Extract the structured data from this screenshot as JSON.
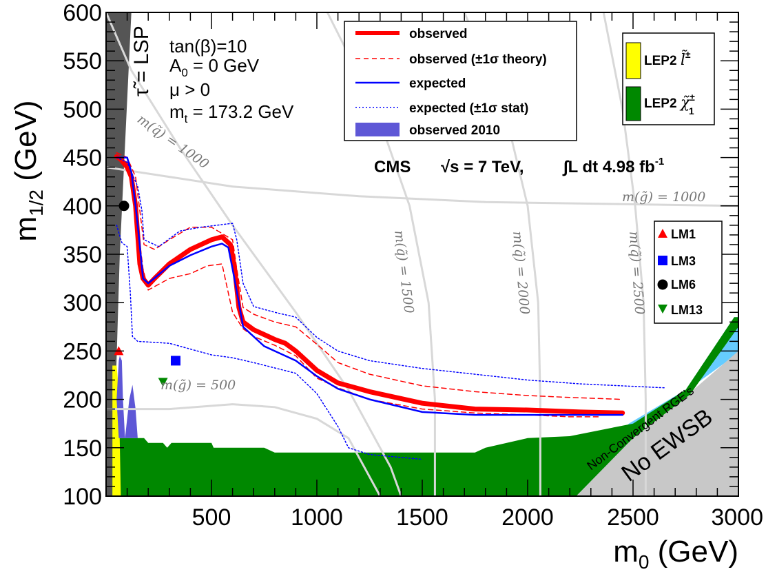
{
  "chart_data": {
    "type": "line",
    "title": "",
    "xlabel": "m0 (GeV)",
    "ylabel": "m1/2 (GeV)",
    "xlim": [
      0,
      3000
    ],
    "ylim": [
      100,
      600
    ],
    "x_ticks": [
      500,
      1000,
      1500,
      2000,
      2500,
      3000
    ],
    "y_ticks": [
      100,
      150,
      200,
      250,
      300,
      350,
      400,
      450,
      500,
      550,
      600
    ],
    "parameters": [
      "tan(β)=10",
      "A0 = 0 GeV",
      "μ > 0",
      "mt = 173.2 GeV"
    ],
    "cms_label": "CMS",
    "energy_label": "√s = 7 TeV,",
    "lumi_label": "∫L dt 4.98 fb-1",
    "series": [
      {
        "name": "observed",
        "color": "#ff0000",
        "style": "solid-thick",
        "points": [
          [
            50,
            451
          ],
          [
            70,
            448
          ],
          [
            100,
            440
          ],
          [
            120,
            430
          ],
          [
            140,
            400
          ],
          [
            150,
            370
          ],
          [
            160,
            340
          ],
          [
            175,
            325
          ],
          [
            200,
            318
          ],
          [
            230,
            325
          ],
          [
            300,
            340
          ],
          [
            400,
            355
          ],
          [
            500,
            365
          ],
          [
            550,
            368
          ],
          [
            590,
            360
          ],
          [
            610,
            335
          ],
          [
            630,
            295
          ],
          [
            650,
            280
          ],
          [
            700,
            272
          ],
          [
            800,
            262
          ],
          [
            850,
            258
          ],
          [
            900,
            250
          ],
          [
            1000,
            230
          ],
          [
            1100,
            217
          ],
          [
            1250,
            208
          ],
          [
            1500,
            196
          ],
          [
            1750,
            190
          ],
          [
            2000,
            189
          ],
          [
            2250,
            187
          ],
          [
            2450,
            186
          ]
        ]
      },
      {
        "name": "observed (±1σ theory)",
        "color": "#ff0000",
        "style": "dashed",
        "points_upper": [
          [
            50,
            455
          ],
          [
            100,
            450
          ],
          [
            140,
            430
          ],
          [
            160,
            395
          ],
          [
            180,
            360
          ],
          [
            230,
            355
          ],
          [
            300,
            365
          ],
          [
            400,
            378
          ],
          [
            500,
            378
          ],
          [
            600,
            365
          ],
          [
            620,
            335
          ],
          [
            650,
            295
          ],
          [
            700,
            288
          ],
          [
            800,
            280
          ],
          [
            900,
            275
          ],
          [
            1000,
            257
          ],
          [
            1100,
            238
          ],
          [
            1250,
            226
          ],
          [
            1500,
            214
          ],
          [
            1750,
            208
          ],
          [
            2000,
            204
          ],
          [
            2200,
            202
          ],
          [
            2450,
            200
          ]
        ],
        "points_lower": [
          [
            50,
            450
          ],
          [
            100,
            445
          ],
          [
            130,
            420
          ],
          [
            150,
            380
          ],
          [
            175,
            335
          ],
          [
            200,
            313
          ],
          [
            300,
            325
          ],
          [
            400,
            330
          ],
          [
            480,
            338
          ],
          [
            550,
            340
          ],
          [
            570,
            320
          ],
          [
            600,
            290
          ],
          [
            650,
            273
          ],
          [
            700,
            265
          ],
          [
            800,
            256
          ],
          [
            900,
            245
          ],
          [
            1000,
            222
          ],
          [
            1100,
            212
          ],
          [
            1250,
            200
          ],
          [
            1500,
            190
          ],
          [
            1750,
            186
          ],
          [
            2000,
            184
          ],
          [
            2200,
            182
          ],
          [
            2350,
            182
          ]
        ]
      },
      {
        "name": "expected",
        "color": "#0000ff",
        "style": "solid",
        "points": [
          [
            50,
            450
          ],
          [
            100,
            450
          ],
          [
            120,
            435
          ],
          [
            140,
            400
          ],
          [
            155,
            370
          ],
          [
            175,
            325
          ],
          [
            200,
            320
          ],
          [
            300,
            338
          ],
          [
            400,
            349
          ],
          [
            500,
            358
          ],
          [
            550,
            361
          ],
          [
            580,
            357
          ],
          [
            600,
            335
          ],
          [
            630,
            300
          ],
          [
            650,
            275
          ],
          [
            750,
            255
          ],
          [
            850,
            245
          ],
          [
            900,
            240
          ],
          [
            1000,
            224
          ],
          [
            1100,
            211
          ],
          [
            1250,
            200
          ],
          [
            1500,
            187
          ],
          [
            1750,
            184
          ],
          [
            2000,
            184
          ],
          [
            2250,
            184
          ],
          [
            2450,
            184
          ]
        ]
      },
      {
        "name": "expected (±1σ stat)",
        "color": "#0000ff",
        "style": "dotted",
        "points_upper": [
          [
            50,
            450
          ],
          [
            100,
            445
          ],
          [
            150,
            420
          ],
          [
            170,
            395
          ],
          [
            180,
            365
          ],
          [
            250,
            358
          ],
          [
            350,
            374
          ],
          [
            450,
            378
          ],
          [
            600,
            382
          ],
          [
            620,
            365
          ],
          [
            650,
            320
          ],
          [
            700,
            296
          ],
          [
            800,
            290
          ],
          [
            900,
            285
          ],
          [
            1000,
            264
          ],
          [
            1100,
            250
          ],
          [
            1250,
            240
          ],
          [
            1500,
            232
          ],
          [
            1750,
            226
          ],
          [
            2000,
            220
          ],
          [
            2250,
            216
          ],
          [
            2650,
            212
          ]
        ],
        "points_lower": [
          [
            50,
            380
          ],
          [
            75,
            362
          ],
          [
            100,
            358
          ],
          [
            115,
            310
          ],
          [
            125,
            265
          ],
          [
            150,
            260
          ],
          [
            300,
            258
          ],
          [
            400,
            252
          ],
          [
            500,
            246
          ],
          [
            600,
            243
          ],
          [
            700,
            238
          ],
          [
            900,
            227
          ],
          [
            1000,
            206
          ],
          [
            1100,
            172
          ],
          [
            1150,
            150
          ],
          [
            1250,
            143
          ],
          [
            1500,
            138
          ]
        ]
      },
      {
        "name": "observed 2010",
        "color": "#5e57d6",
        "style": "fill"
      }
    ],
    "excluded_regions": [
      {
        "name": "LEP2 l̃±",
        "color": "#ffff00"
      },
      {
        "name": "LEP2 χ̃1±",
        "color": "#008800"
      },
      {
        "name": "τ̃ = LSP",
        "color": "#555555"
      },
      {
        "name": "Non-Convergent RGE's",
        "color": "#66ccff"
      },
      {
        "name": "No EWSB",
        "color": "#c8c8c8"
      }
    ],
    "contour_labels": {
      "squark_1000": "m(q̃) = 1000",
      "gluino_1000": "m(g̃) = 1000",
      "squark_1500": "m(q̃) = 1500",
      "squark_2000": "m(q̃) = 2000",
      "squark_2500": "m(q̃) = 2500",
      "gluino_500": "m(g̃) = 500"
    },
    "benchmarks": [
      {
        "name": "LM1",
        "m0": 60,
        "m12": 250,
        "color": "#ff0000",
        "marker": "triangle-up"
      },
      {
        "name": "LM3",
        "m0": 330,
        "m12": 240,
        "color": "#0000ff",
        "marker": "square"
      },
      {
        "name": "LM6",
        "m0": 85,
        "m12": 400,
        "color": "#000000",
        "marker": "circle"
      },
      {
        "name": "LM13",
        "m0": 270,
        "m12": 218,
        "color": "#008800",
        "marker": "triangle-down"
      }
    ]
  }
}
